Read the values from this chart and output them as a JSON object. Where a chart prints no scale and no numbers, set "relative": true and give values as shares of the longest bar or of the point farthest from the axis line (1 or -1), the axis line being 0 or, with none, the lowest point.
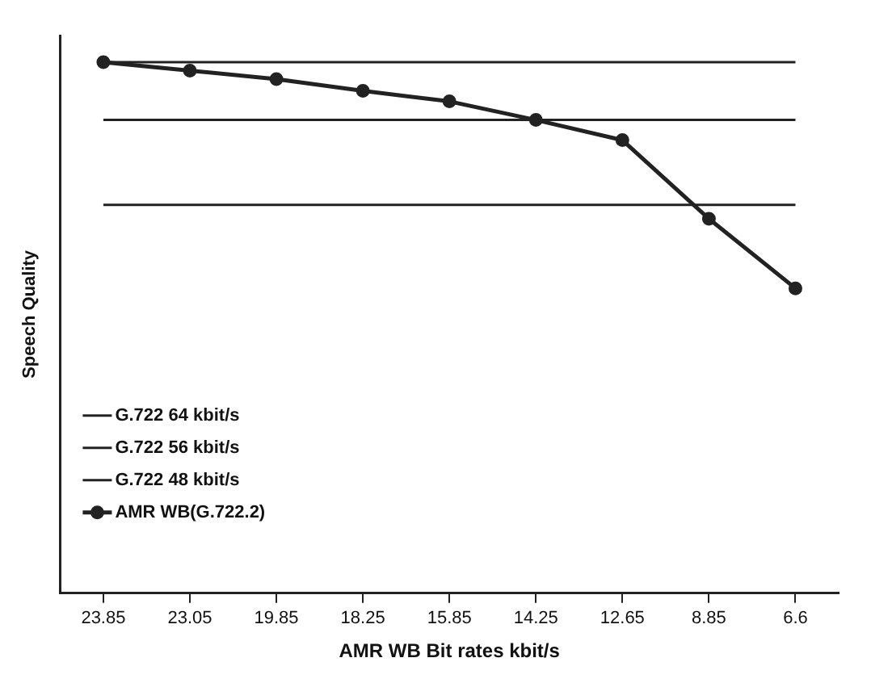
{
  "chart_data": {
    "type": "line",
    "relative": true,
    "xlabel": "AMR WB Bit rates kbit/s",
    "ylabel": "Speech Quality",
    "categories": [
      "23.85",
      "23.05",
      "19.85",
      "18.25",
      "15.85",
      "14.25",
      "12.65",
      "8.85",
      "6.6"
    ],
    "series": [
      {
        "name": "G.722 64 kbit/s",
        "color": "#222222",
        "marker": "none",
        "values": [
          1,
          1,
          1,
          1,
          1,
          1,
          1,
          1,
          1
        ]
      },
      {
        "name": "G.722 56 kbit/s",
        "color": "#222222",
        "marker": "none",
        "values": [
          0.891,
          0.891,
          0.891,
          0.891,
          0.891,
          0.891,
          0.891,
          0.891,
          0.891
        ]
      },
      {
        "name": "G.722 48 kbit/s",
        "color": "#222222",
        "marker": "none",
        "values": [
          0.731,
          0.731,
          0.731,
          0.731,
          0.731,
          0.731,
          0.731,
          0.731,
          0.731
        ]
      },
      {
        "name": "AMR WB(G.722.2)",
        "color": "#222222",
        "marker": "circle",
        "values": [
          1,
          0.984,
          0.968,
          0.946,
          0.926,
          0.891,
          0.853,
          0.705,
          0.574
        ]
      }
    ],
    "legend": "bottom left",
    "grid": false
  }
}
